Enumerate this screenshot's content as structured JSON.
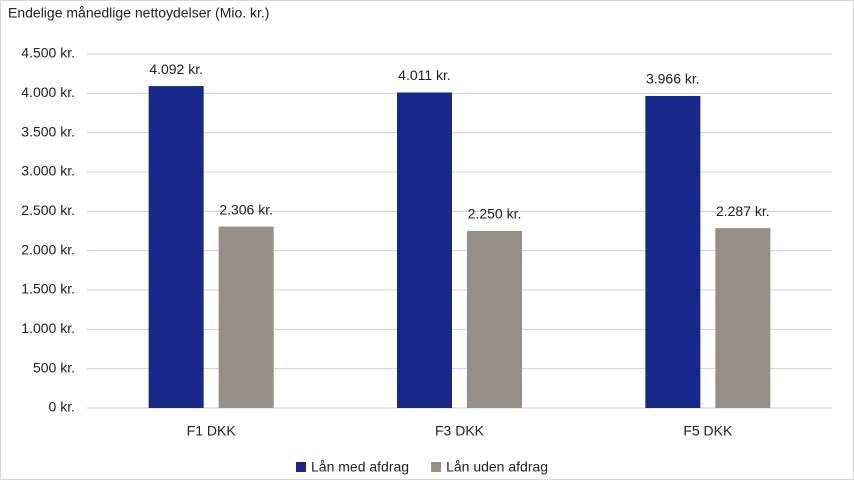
{
  "chart_data": {
    "type": "bar",
    "title": "Endelige månedlige nettoydelser (Mio. kr.)",
    "categories": [
      "F1 DKK",
      "F3 DKK",
      "F5 DKK"
    ],
    "series": [
      {
        "name": "Lån med afdrag",
        "color": "#17288a",
        "values": [
          4092,
          4011,
          3966
        ],
        "value_labels": [
          "4.092 kr.",
          "4.011 kr.",
          "3.966 kr."
        ]
      },
      {
        "name": "Lån uden afdrag",
        "color": "#958f88",
        "values": [
          2306,
          2250,
          2287
        ],
        "value_labels": [
          "2.306 kr.",
          "2.250 kr.",
          "2.287 kr."
        ]
      }
    ],
    "ylim": [
      0,
      4500
    ],
    "yticks": [
      {
        "value": 0,
        "label": "0 kr."
      },
      {
        "value": 500,
        "label": "500 kr."
      },
      {
        "value": 1000,
        "label": "1.000 kr."
      },
      {
        "value": 1500,
        "label": "1.500 kr."
      },
      {
        "value": 2000,
        "label": "2.000 kr."
      },
      {
        "value": 2500,
        "label": "2.500 kr."
      },
      {
        "value": 3000,
        "label": "3.000 kr."
      },
      {
        "value": 3500,
        "label": "3.500 kr."
      },
      {
        "value": 4000,
        "label": "4.000 kr."
      },
      {
        "value": 4500,
        "label": "4.500 kr."
      }
    ],
    "grid": true,
    "legend": "bottom"
  }
}
